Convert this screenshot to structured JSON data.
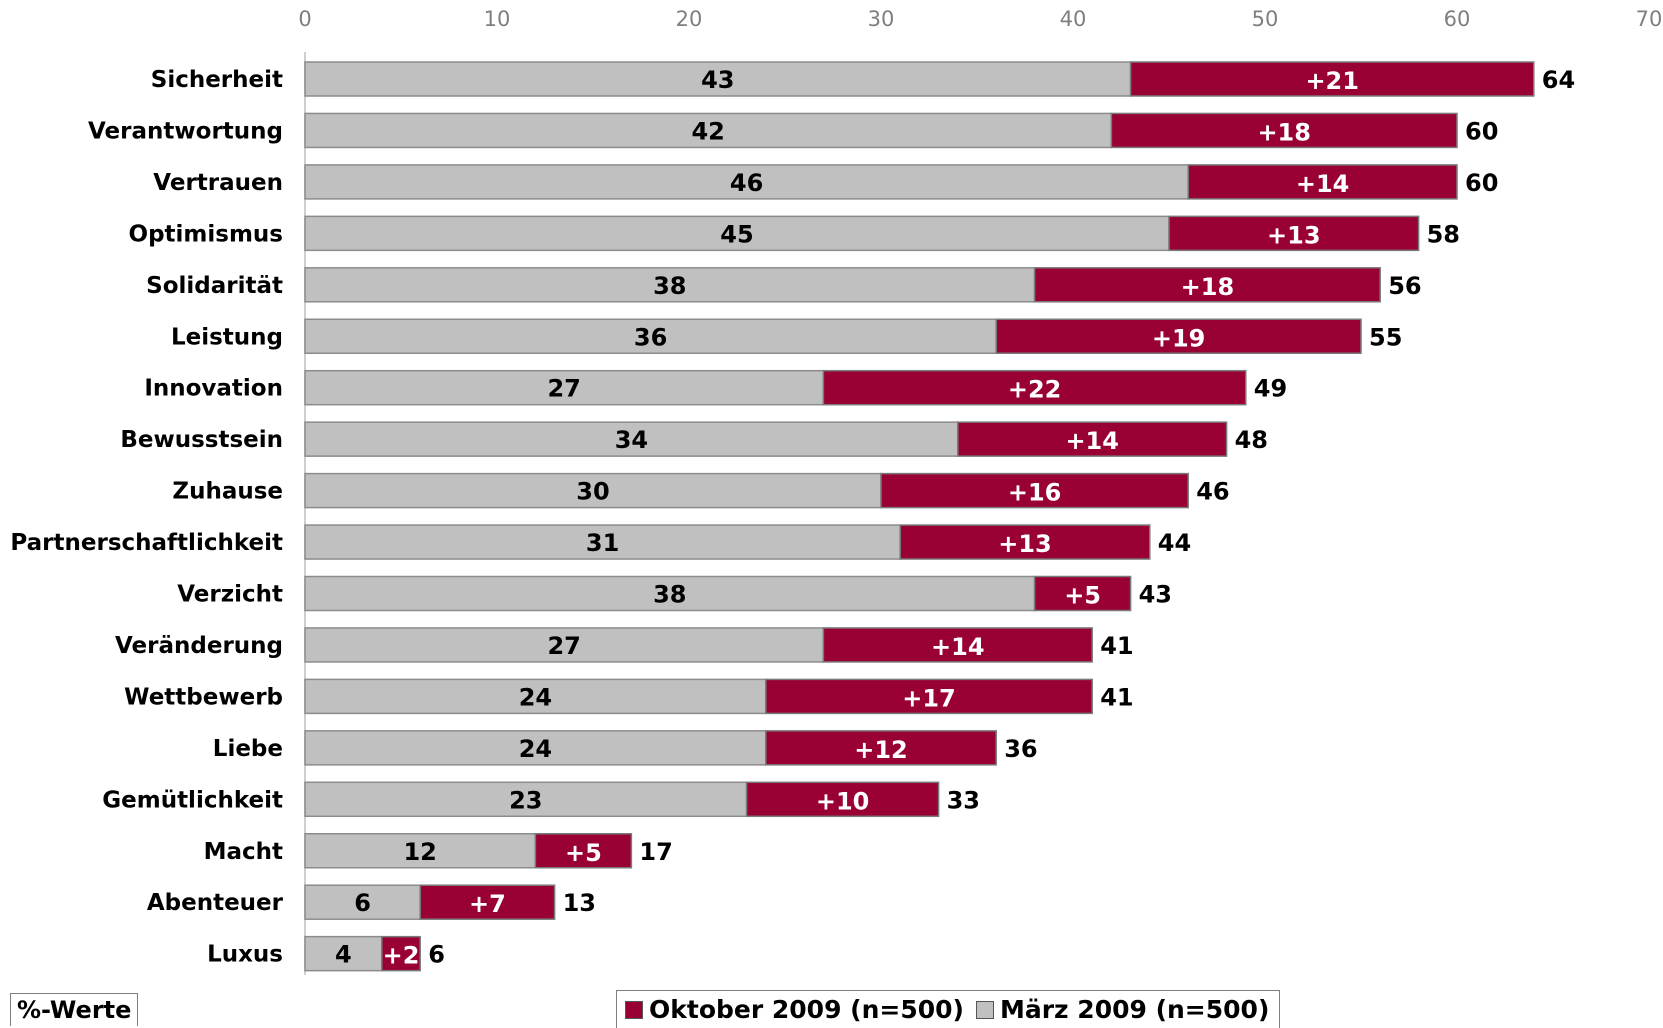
{
  "chart_data": {
    "type": "bar",
    "orientation": "horizontal",
    "stacked": true,
    "xlim": [
      0,
      70
    ],
    "x_ticks": [
      0,
      10,
      20,
      30,
      40,
      50,
      60,
      70
    ],
    "x_tick_labels": [
      "0",
      "10",
      "20",
      "30",
      "40",
      "50",
      "60",
      "70"
    ],
    "categories": [
      "Sicherheit",
      "Verantwortung",
      "Vertrauen",
      "Optimismus",
      "Solidarität",
      "Leistung",
      "Innovation",
      "Bewusstsein",
      "Zuhause",
      "Partnerschaftlichkeit",
      "Verzicht",
      "Veränderung",
      "Wettbewerb",
      "Liebe",
      "Gemütlichkeit",
      "Macht",
      "Abenteuer",
      "Luxus"
    ],
    "series": [
      {
        "name": "März 2009 (n=500)",
        "color": "#c0c0c0",
        "values": [
          43,
          42,
          46,
          45,
          38,
          36,
          27,
          34,
          30,
          31,
          38,
          27,
          24,
          24,
          23,
          12,
          6,
          4
        ],
        "labels": [
          "43",
          "42",
          "46",
          "45",
          "38",
          "36",
          "27",
          "34",
          "30",
          "31",
          "38",
          "27",
          "24",
          "24",
          "23",
          "12",
          "6",
          "4"
        ]
      },
      {
        "name": "Oktober 2009 (n=500)",
        "color": "#990033",
        "values": [
          21,
          18,
          14,
          13,
          18,
          19,
          22,
          14,
          16,
          13,
          5,
          14,
          17,
          12,
          10,
          5,
          7,
          2
        ],
        "labels": [
          "+21",
          "+18",
          "+14",
          "+13",
          "+18",
          "+19",
          "+22",
          "+14",
          "+16",
          "+13",
          "+5",
          "+14",
          "+17",
          "+12",
          "+10",
          "+5",
          "+7",
          "+2"
        ]
      }
    ],
    "totals": [
      64,
      60,
      60,
      58,
      56,
      55,
      49,
      48,
      46,
      44,
      43,
      41,
      41,
      36,
      33,
      17,
      13,
      6
    ],
    "total_labels": [
      "64",
      "60",
      "60",
      "58",
      "56",
      "55",
      "49",
      "48",
      "46",
      "44",
      "43",
      "41",
      "41",
      "36",
      "33",
      "17",
      "13",
      "6"
    ],
    "grid": false,
    "legend_position": "bottom-center",
    "unit_label": "%-Werte"
  },
  "legend": {
    "items": [
      {
        "label": "Oktober 2009 (n=500)",
        "color": "#990033"
      },
      {
        "label": "März 2009 (n=500)",
        "color": "#c0c0c0"
      }
    ]
  }
}
